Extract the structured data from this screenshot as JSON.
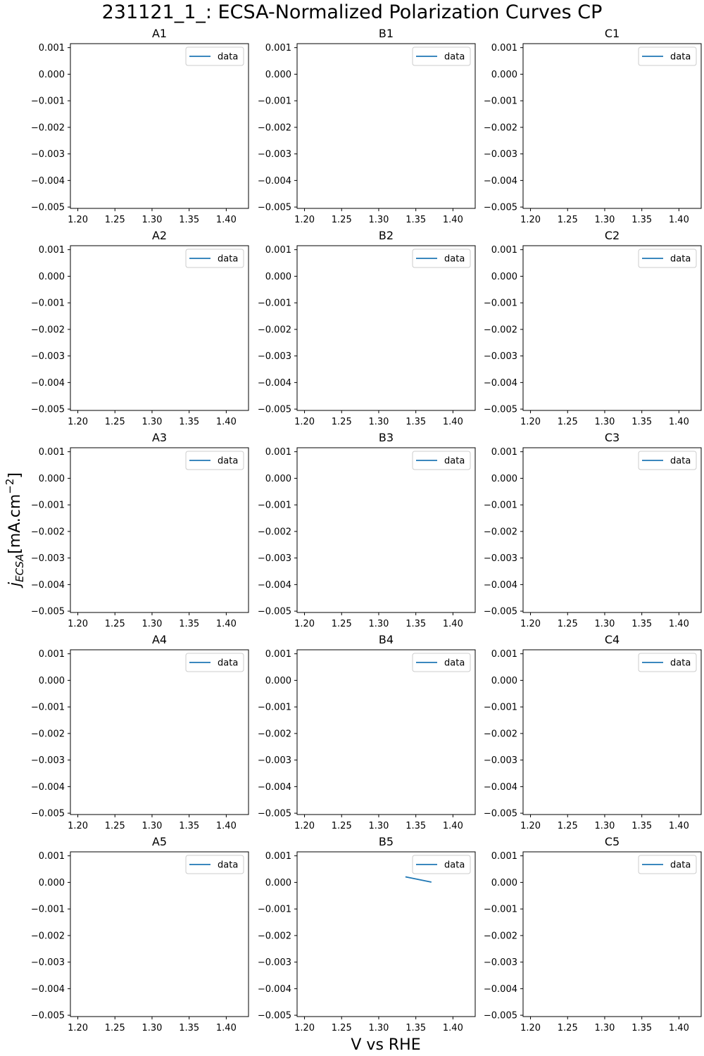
{
  "figure": {
    "title": "231121_1_: ECSA-Normalized Polarization Curves CP",
    "xlabel": "V vs RHE",
    "ylabel_main": "j",
    "ylabel_sub": "ECSA",
    "ylabel_unit": "[mA.cm",
    "ylabel_exp": "−2",
    "ylabel_close": "]",
    "line_color": "#1f77b4"
  },
  "chart_data": [
    {
      "title": "A1",
      "type": "line",
      "xlim": [
        1.19,
        1.43
      ],
      "ylim": [
        -0.00505,
        0.00115
      ],
      "xticks": [
        "1.20",
        "1.25",
        "1.30",
        "1.35",
        "1.40"
      ],
      "yticks": [
        "0.001",
        "0.000",
        "−0.001",
        "−0.002",
        "−0.003",
        "−0.004",
        "−0.005"
      ],
      "legend": "top-right",
      "series": [
        {
          "name": "data",
          "x": [],
          "y": []
        }
      ]
    },
    {
      "title": "B1",
      "type": "line",
      "xlim": [
        1.19,
        1.43
      ],
      "ylim": [
        -0.00505,
        0.00115
      ],
      "xticks": [
        "1.20",
        "1.25",
        "1.30",
        "1.35",
        "1.40"
      ],
      "yticks": [
        "0.001",
        "0.000",
        "−0.001",
        "−0.002",
        "−0.003",
        "−0.004",
        "−0.005"
      ],
      "legend": "top-right",
      "series": [
        {
          "name": "data",
          "x": [],
          "y": []
        }
      ]
    },
    {
      "title": "C1",
      "type": "line",
      "xlim": [
        1.19,
        1.43
      ],
      "ylim": [
        -0.00505,
        0.00115
      ],
      "xticks": [
        "1.20",
        "1.25",
        "1.30",
        "1.35",
        "1.40"
      ],
      "yticks": [
        "0.001",
        "0.000",
        "−0.001",
        "−0.002",
        "−0.003",
        "−0.004",
        "−0.005"
      ],
      "legend": "top-right",
      "series": [
        {
          "name": "data",
          "x": [],
          "y": []
        }
      ]
    },
    {
      "title": "A2",
      "type": "line",
      "xlim": [
        1.19,
        1.43
      ],
      "ylim": [
        -0.00505,
        0.00115
      ],
      "xticks": [
        "1.20",
        "1.25",
        "1.30",
        "1.35",
        "1.40"
      ],
      "yticks": [
        "0.001",
        "0.000",
        "−0.001",
        "−0.002",
        "−0.003",
        "−0.004",
        "−0.005"
      ],
      "legend": "top-right",
      "series": [
        {
          "name": "data",
          "x": [],
          "y": []
        }
      ]
    },
    {
      "title": "B2",
      "type": "line",
      "xlim": [
        1.19,
        1.43
      ],
      "ylim": [
        -0.00505,
        0.00115
      ],
      "xticks": [
        "1.20",
        "1.25",
        "1.30",
        "1.35",
        "1.40"
      ],
      "yticks": [
        "0.001",
        "0.000",
        "−0.001",
        "−0.002",
        "−0.003",
        "−0.004",
        "−0.005"
      ],
      "legend": "top-right",
      "series": [
        {
          "name": "data",
          "x": [],
          "y": []
        }
      ]
    },
    {
      "title": "C2",
      "type": "line",
      "xlim": [
        1.19,
        1.43
      ],
      "ylim": [
        -0.00505,
        0.00115
      ],
      "xticks": [
        "1.20",
        "1.25",
        "1.30",
        "1.35",
        "1.40"
      ],
      "yticks": [
        "0.001",
        "0.000",
        "−0.001",
        "−0.002",
        "−0.003",
        "−0.004",
        "−0.005"
      ],
      "legend": "top-right",
      "series": [
        {
          "name": "data",
          "x": [],
          "y": []
        }
      ]
    },
    {
      "title": "A3",
      "type": "line",
      "xlim": [
        1.19,
        1.43
      ],
      "ylim": [
        -0.00505,
        0.00115
      ],
      "xticks": [
        "1.20",
        "1.25",
        "1.30",
        "1.35",
        "1.40"
      ],
      "yticks": [
        "0.001",
        "0.000",
        "−0.001",
        "−0.002",
        "−0.003",
        "−0.004",
        "−0.005"
      ],
      "legend": "top-right",
      "series": [
        {
          "name": "data",
          "x": [],
          "y": []
        }
      ]
    },
    {
      "title": "B3",
      "type": "line",
      "xlim": [
        1.19,
        1.43
      ],
      "ylim": [
        -0.00505,
        0.00115
      ],
      "xticks": [
        "1.20",
        "1.25",
        "1.30",
        "1.35",
        "1.40"
      ],
      "yticks": [
        "0.001",
        "0.000",
        "−0.001",
        "−0.002",
        "−0.003",
        "−0.004",
        "−0.005"
      ],
      "legend": "top-right",
      "series": [
        {
          "name": "data",
          "x": [],
          "y": []
        }
      ]
    },
    {
      "title": "C3",
      "type": "line",
      "xlim": [
        1.19,
        1.43
      ],
      "ylim": [
        -0.00505,
        0.00115
      ],
      "xticks": [
        "1.20",
        "1.25",
        "1.30",
        "1.35",
        "1.40"
      ],
      "yticks": [
        "0.001",
        "0.000",
        "−0.001",
        "−0.002",
        "−0.003",
        "−0.004",
        "−0.005"
      ],
      "legend": "top-right",
      "series": [
        {
          "name": "data",
          "x": [],
          "y": []
        }
      ]
    },
    {
      "title": "A4",
      "type": "line",
      "xlim": [
        1.19,
        1.43
      ],
      "ylim": [
        -0.00505,
        0.00115
      ],
      "xticks": [
        "1.20",
        "1.25",
        "1.30",
        "1.35",
        "1.40"
      ],
      "yticks": [
        "0.001",
        "0.000",
        "−0.001",
        "−0.002",
        "−0.003",
        "−0.004",
        "−0.005"
      ],
      "legend": "top-right",
      "series": [
        {
          "name": "data",
          "x": [],
          "y": []
        }
      ]
    },
    {
      "title": "B4",
      "type": "line",
      "xlim": [
        1.19,
        1.43
      ],
      "ylim": [
        -0.00505,
        0.00115
      ],
      "xticks": [
        "1.20",
        "1.25",
        "1.30",
        "1.35",
        "1.40"
      ],
      "yticks": [
        "0.001",
        "0.000",
        "−0.001",
        "−0.002",
        "−0.003",
        "−0.004",
        "−0.005"
      ],
      "legend": "top-right",
      "series": [
        {
          "name": "data",
          "x": [],
          "y": []
        }
      ]
    },
    {
      "title": "C4",
      "type": "line",
      "xlim": [
        1.19,
        1.43
      ],
      "ylim": [
        -0.00505,
        0.00115
      ],
      "xticks": [
        "1.20",
        "1.25",
        "1.30",
        "1.35",
        "1.40"
      ],
      "yticks": [
        "0.001",
        "0.000",
        "−0.001",
        "−0.002",
        "−0.003",
        "−0.004",
        "−0.005"
      ],
      "legend": "top-right",
      "series": [
        {
          "name": "data",
          "x": [],
          "y": []
        }
      ]
    },
    {
      "title": "A5",
      "type": "line",
      "xlim": [
        1.19,
        1.43
      ],
      "ylim": [
        -0.00505,
        0.00115
      ],
      "xticks": [
        "1.20",
        "1.25",
        "1.30",
        "1.35",
        "1.40"
      ],
      "yticks": [
        "0.001",
        "0.000",
        "−0.001",
        "−0.002",
        "−0.003",
        "−0.004",
        "−0.005"
      ],
      "legend": "top-right",
      "series": [
        {
          "name": "data",
          "x": [],
          "y": []
        }
      ]
    },
    {
      "title": "B5",
      "type": "line",
      "xlim": [
        1.19,
        1.43
      ],
      "ylim": [
        -0.00505,
        0.00115
      ],
      "xticks": [
        "1.20",
        "1.25",
        "1.30",
        "1.35",
        "1.40"
      ],
      "yticks": [
        "0.001",
        "0.000",
        "−0.001",
        "−0.002",
        "−0.003",
        "−0.004",
        "−0.005"
      ],
      "legend": "top-right",
      "series": [
        {
          "name": "data",
          "x": [
            1.336,
            1.371
          ],
          "y": [
            0.00021,
            1e-05
          ]
        }
      ]
    },
    {
      "title": "C5",
      "type": "line",
      "xlim": [
        1.19,
        1.43
      ],
      "ylim": [
        -0.00505,
        0.00115
      ],
      "xticks": [
        "1.20",
        "1.25",
        "1.30",
        "1.35",
        "1.40"
      ],
      "yticks": [
        "0.001",
        "0.000",
        "−0.001",
        "−0.002",
        "−0.003",
        "−0.004",
        "−0.005"
      ],
      "legend": "top-right",
      "series": [
        {
          "name": "data",
          "x": [],
          "y": []
        }
      ]
    }
  ]
}
